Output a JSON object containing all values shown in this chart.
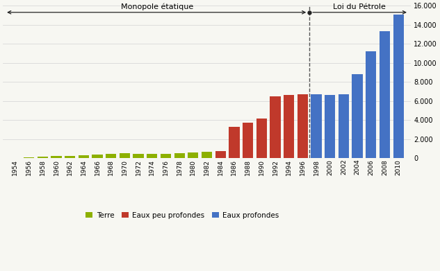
{
  "years": [
    1954,
    1956,
    1958,
    1960,
    1962,
    1964,
    1966,
    1968,
    1970,
    1972,
    1974,
    1976,
    1978,
    1980,
    1982,
    1984,
    1986,
    1988,
    1990,
    1992,
    1994,
    1996,
    1998,
    2000,
    2002,
    2004,
    2006,
    2008,
    2010
  ],
  "values": [
    50,
    110,
    160,
    210,
    260,
    310,
    380,
    480,
    500,
    490,
    470,
    490,
    560,
    620,
    680,
    750,
    3300,
    3700,
    4200,
    6500,
    6600,
    6700,
    6700,
    6600,
    6700,
    8800,
    11200,
    13300,
    15100
  ],
  "colors": [
    "#8db000",
    "#8db000",
    "#8db000",
    "#8db000",
    "#8db000",
    "#8db000",
    "#8db000",
    "#8db000",
    "#8db000",
    "#8db000",
    "#8db000",
    "#8db000",
    "#8db000",
    "#8db000",
    "#8db000",
    "#c0392b",
    "#c0392b",
    "#c0392b",
    "#c0392b",
    "#c0392b",
    "#c0392b",
    "#c0392b",
    "#4472c4",
    "#4472c4",
    "#4472c4",
    "#4472c4",
    "#4472c4",
    "#4472c4",
    "#4472c4"
  ],
  "color_terre": "#8db000",
  "color_eaux_peu": "#c0392b",
  "color_eaux_prof": "#4472c4",
  "background_color": "#f7f7f2",
  "grid_color": "#d8d8d8",
  "ylim": [
    0,
    16000
  ],
  "yticks": [
    0,
    2000,
    4000,
    6000,
    8000,
    10000,
    12000,
    14000,
    16000
  ],
  "monopole_text": "Monopole étatique",
  "loi_text": "Loi du Pétrole",
  "split_year": 1997,
  "legend_terre": "Terre",
  "legend_peu": "Eaux peu profondes",
  "legend_prof": "Eaux profondes"
}
